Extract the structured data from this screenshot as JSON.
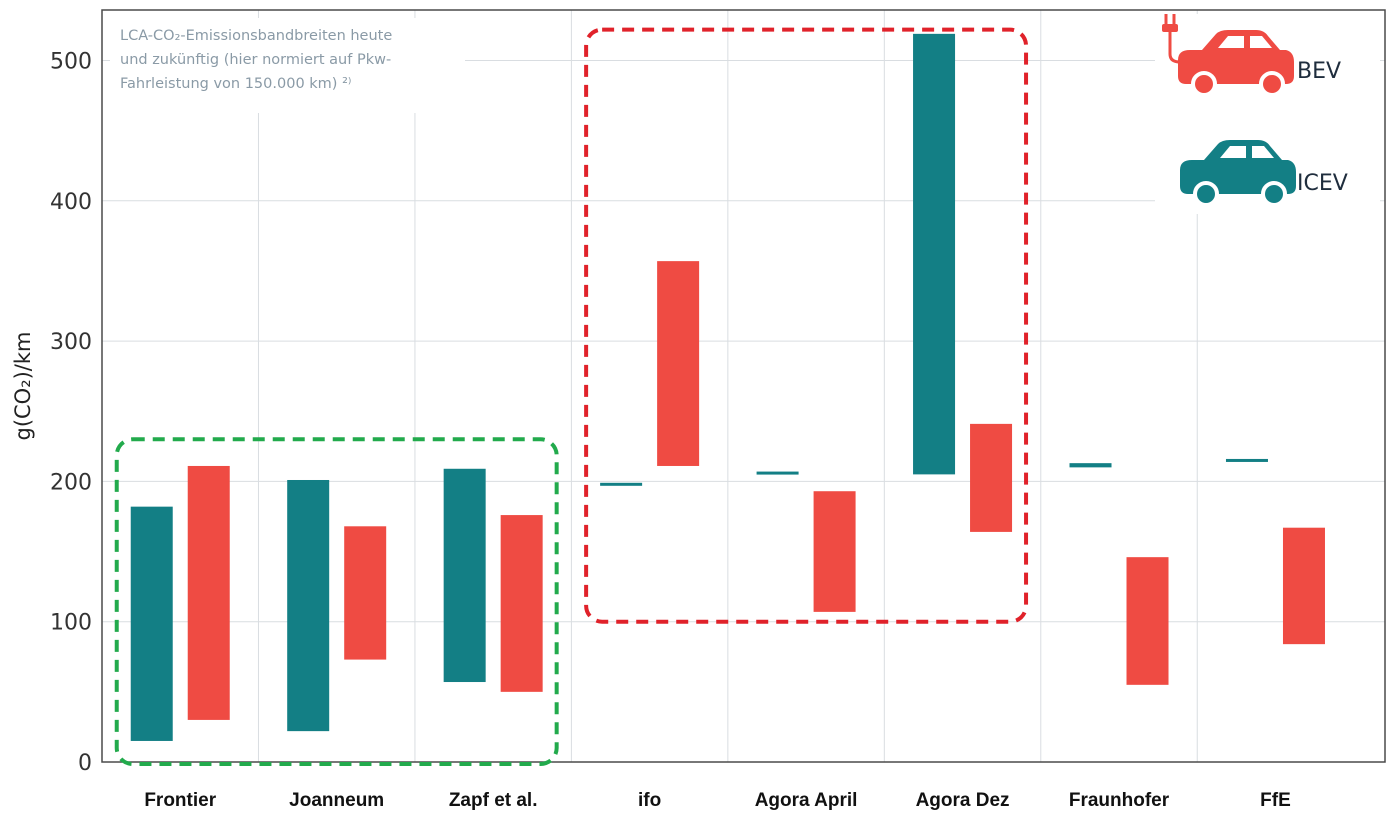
{
  "chart_data": {
    "type": "bar",
    "subtype": "floating-range",
    "title": "",
    "xlabel": "",
    "ylabel": "g(CO₂)/km",
    "ylim": [
      0,
      520
    ],
    "yticks": [
      "0",
      "100",
      "200",
      "300",
      "400",
      "500"
    ],
    "ytick_values": [
      0,
      100,
      200,
      300,
      400,
      500
    ],
    "categories": [
      "Frontier",
      "Joanneum",
      "Zapf et al.",
      "ifo",
      "Agora April",
      "Agora Dez",
      "Fraunhofer",
      "FfE"
    ],
    "series": [
      {
        "name": "ICEV",
        "color": "#137f85",
        "ranges": [
          [
            15,
            182
          ],
          [
            22,
            201
          ],
          [
            57,
            209
          ],
          [
            197,
            199
          ],
          [
            205,
            207
          ],
          [
            205,
            519
          ],
          [
            210,
            213
          ],
          [
            214,
            216
          ]
        ]
      },
      {
        "name": "BEV",
        "color": "#ef4b43",
        "ranges": [
          [
            30,
            211
          ],
          [
            73,
            168
          ],
          [
            50,
            176
          ],
          [
            211,
            357
          ],
          [
            107,
            193
          ],
          [
            164,
            241
          ],
          [
            55,
            146
          ],
          [
            84,
            167
          ]
        ]
      }
    ],
    "grid": true,
    "legend": {
      "placement": "top-right",
      "BEV_label": "BEV",
      "ICEV_label": "ICEV"
    },
    "annotation": {
      "line1": "LCA-CO₂-Emissionsbandbreiten heute",
      "line2": "und zukünftig (hier normiert auf Pkw-",
      "line3": "Fahrleistung von 150.000 km) ²⁾"
    },
    "highlight_boxes": [
      {
        "color": "#22aa4c",
        "categories": [
          "Frontier",
          "Joanneum",
          "Zapf et al."
        ],
        "ylim": [
          0,
          230
        ]
      },
      {
        "color": "#e0222a",
        "categories": [
          "ifo",
          "Agora April",
          "Agora Dez"
        ],
        "ylim": [
          100,
          522
        ]
      }
    ]
  }
}
